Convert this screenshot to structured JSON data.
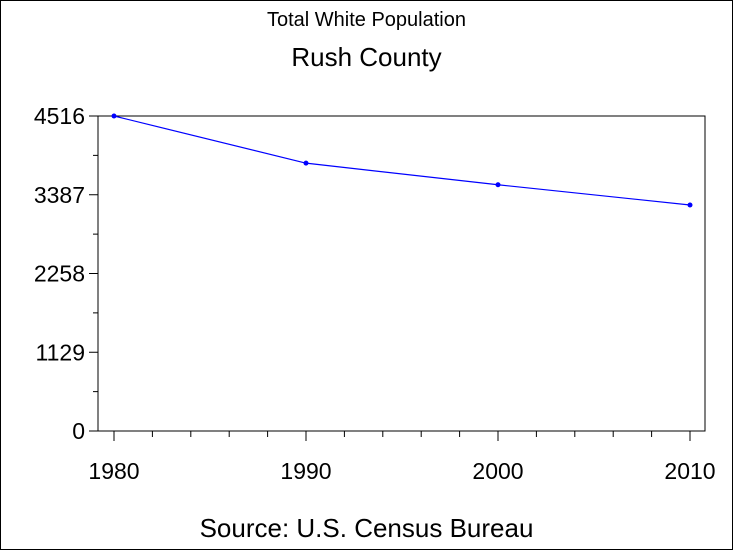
{
  "chart_data": {
    "type": "line",
    "subtitle": "Total White Population",
    "title": "Rush County",
    "source": "Source: U.S. Census Bureau",
    "xlabel": "",
    "ylabel": "",
    "x": [
      1980,
      1990,
      2000,
      2010
    ],
    "x_tick_labels": [
      "1980",
      "1990",
      "2000",
      "2010"
    ],
    "y_tick_values": [
      0,
      1129,
      2258,
      3387,
      4516
    ],
    "y_tick_labels": [
      "0",
      "1129",
      "2258",
      "3387",
      "4516"
    ],
    "ylim": [
      0,
      4516
    ],
    "xlim": [
      1980,
      2010
    ],
    "grid": false,
    "series": [
      {
        "values": [
          4516,
          3840,
          3530,
          3240
        ]
      }
    ],
    "colors": {
      "series": "#0000ff",
      "axes": "#000000",
      "background": "#ffffff"
    }
  }
}
